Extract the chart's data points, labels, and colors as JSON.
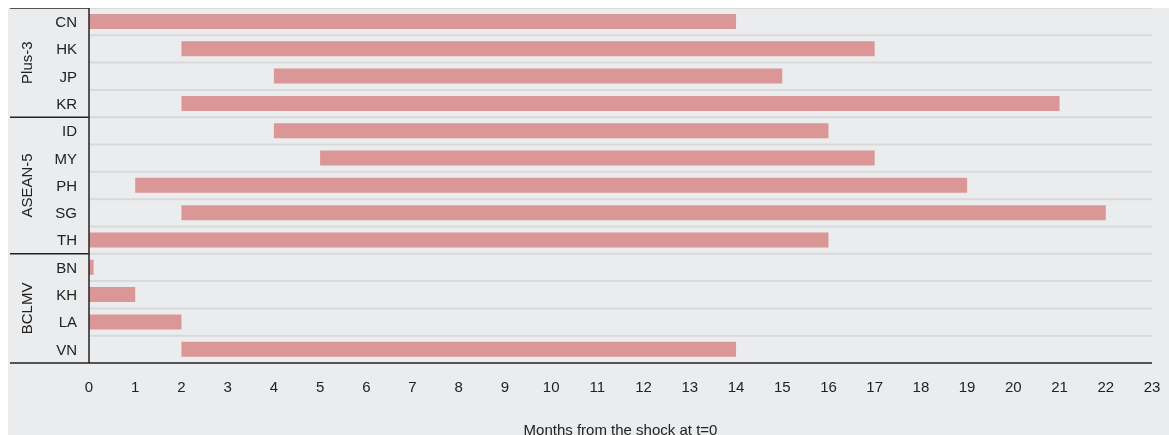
{
  "chart_data": {
    "type": "bar",
    "orientation": "horizontal",
    "xlabel": "Months from the shock at t=0",
    "categories": [
      "CN",
      "HK",
      "JP",
      "KR",
      "ID",
      "MY",
      "PH",
      "SG",
      "TH",
      "BN",
      "KH",
      "LA",
      "VN"
    ],
    "base": [
      0,
      2,
      4,
      2,
      4,
      5,
      1,
      2,
      0,
      0,
      0,
      0,
      2
    ],
    "values": [
      14,
      15,
      11,
      19,
      12,
      12,
      18,
      20,
      16,
      0.1,
      1,
      2,
      12
    ],
    "color": "#db9696",
    "xlim": [
      0,
      23
    ],
    "xticks": [
      0,
      1,
      2,
      3,
      4,
      5,
      6,
      7,
      8,
      9,
      10,
      11,
      12,
      13,
      14,
      15,
      16,
      17,
      18,
      19,
      20,
      21,
      22,
      23
    ],
    "grid": "y",
    "annotations": [
      "Plus-3",
      "ASEAN-5",
      "BCLMV"
    ]
  }
}
